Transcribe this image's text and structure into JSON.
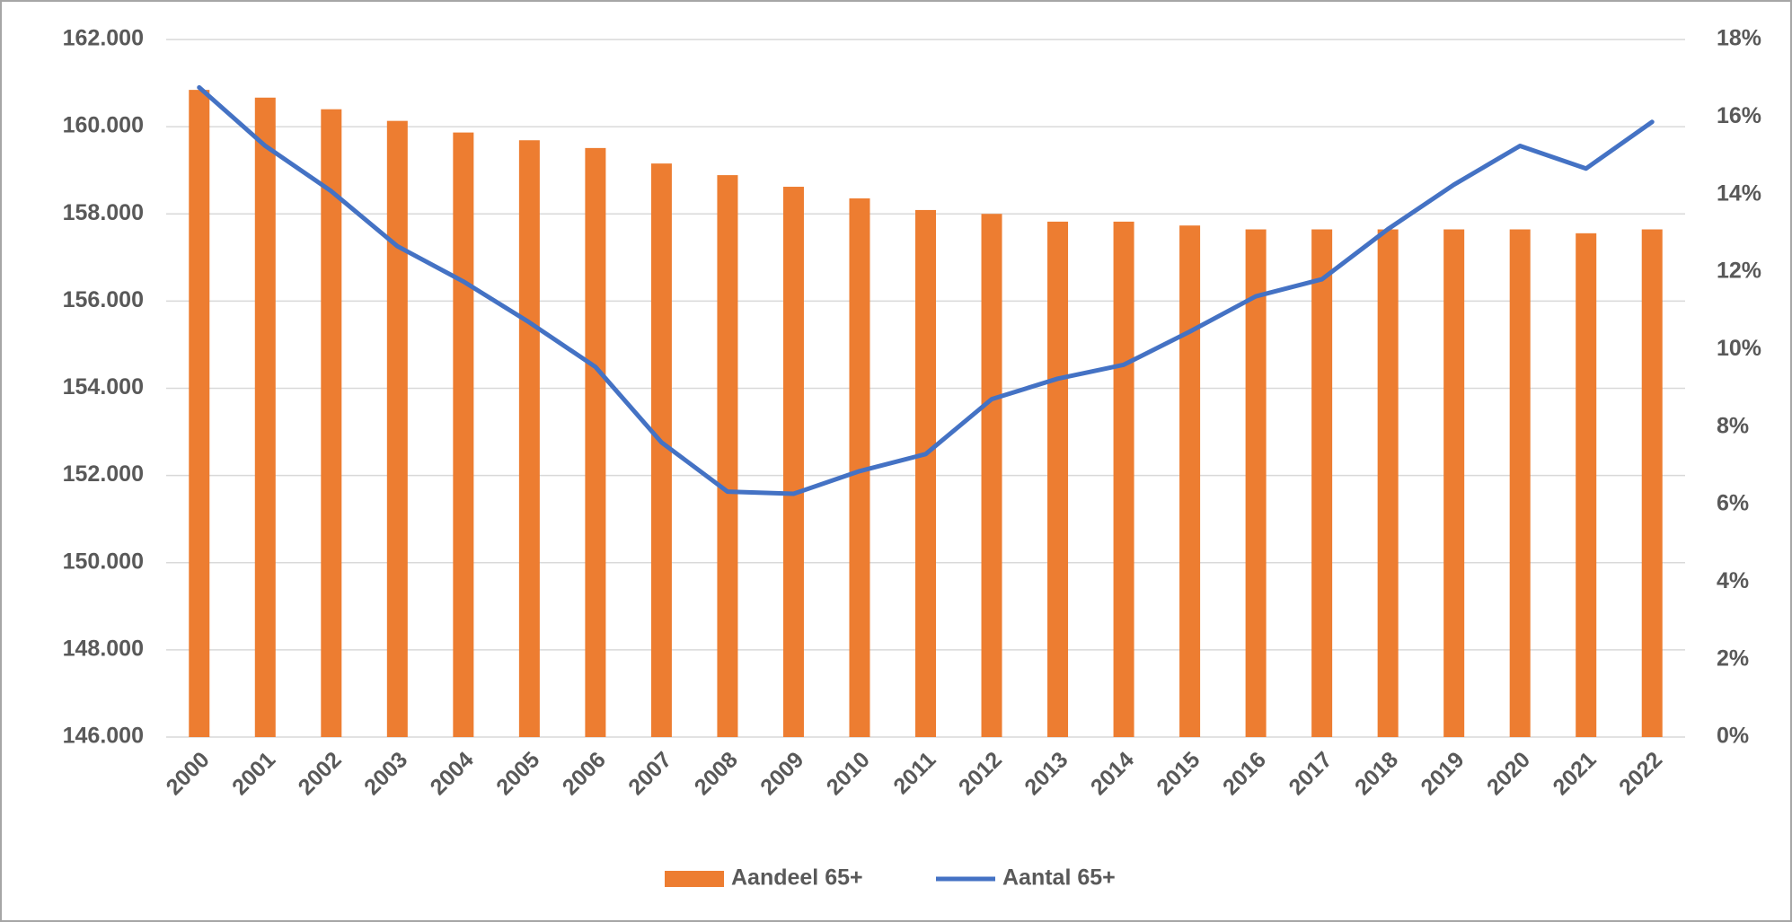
{
  "chart_data": {
    "type": "bar-line",
    "categories": [
      "2000",
      "2001",
      "2002",
      "2003",
      "2004",
      "2005",
      "2006",
      "2007",
      "2008",
      "2009",
      "2010",
      "2011",
      "2012",
      "2013",
      "2014",
      "2015",
      "2016",
      "2017",
      "2018",
      "2019",
      "2020",
      "2021",
      "2022"
    ],
    "series": [
      {
        "name": "Aandeel 65+",
        "type": "bar",
        "axis": "y2",
        "color": "#ED7D31",
        "values": [
          16.7,
          16.5,
          16.2,
          15.9,
          15.6,
          15.4,
          15.2,
          14.8,
          14.5,
          14.2,
          13.9,
          13.6,
          13.5,
          13.3,
          13.3,
          13.2,
          13.1,
          13.1,
          13.1,
          13.1,
          13.1,
          13.0,
          13.1
        ]
      },
      {
        "name": "Aantal 65+",
        "type": "line",
        "color": "#4472C4",
        "values": [
          160900,
          159560,
          158520,
          157260,
          156450,
          155510,
          154490,
          152760,
          151630,
          151580,
          152100,
          152490,
          153750,
          154220,
          154540,
          155300,
          156110,
          156500,
          157650,
          158670,
          159560,
          159040,
          160110
        ]
      }
    ],
    "ylim": [
      146000,
      162000
    ],
    "yticks": [
      {
        "value": 146000,
        "label": "146.000"
      },
      {
        "value": 148000,
        "label": "148.000"
      },
      {
        "value": 150000,
        "label": "150.000"
      },
      {
        "value": 152000,
        "label": "152.000"
      },
      {
        "value": 154000,
        "label": "154.000"
      },
      {
        "value": 156000,
        "label": "156.000"
      },
      {
        "value": 158000,
        "label": "158.000"
      },
      {
        "value": 160000,
        "label": "160.000"
      },
      {
        "value": 162000,
        "label": "162.000"
      }
    ],
    "y2lim": [
      0,
      18
    ],
    "y2ticks": [
      {
        "value": 0,
        "label": "0%"
      },
      {
        "value": 2,
        "label": "2%"
      },
      {
        "value": 4,
        "label": "4%"
      },
      {
        "value": 6,
        "label": "6%"
      },
      {
        "value": 8,
        "label": "8%"
      },
      {
        "value": 10,
        "label": "10%"
      },
      {
        "value": 12,
        "label": "12%"
      },
      {
        "value": 14,
        "label": "14%"
      },
      {
        "value": 16,
        "label": "16%"
      },
      {
        "value": 18,
        "label": "18%"
      }
    ],
    "grid": true,
    "legend": "bottom"
  }
}
